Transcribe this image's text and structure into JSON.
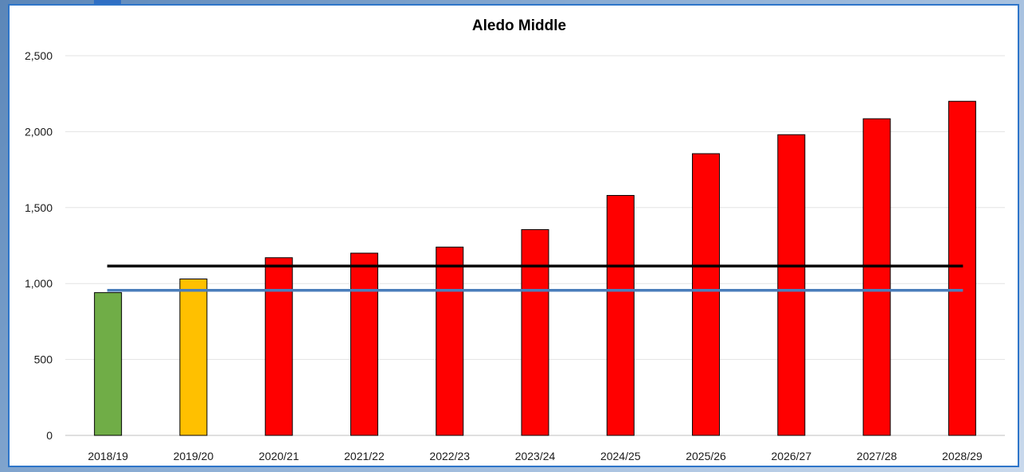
{
  "chart_data": {
    "type": "bar",
    "title": "Aledo Middle",
    "categories": [
      "2018/19",
      "2019/20",
      "2020/21",
      "2021/22",
      "2022/23",
      "2023/24",
      "2024/25",
      "2025/26",
      "2026/27",
      "2027/28",
      "2028/29"
    ],
    "values": [
      940,
      1030,
      1170,
      1200,
      1240,
      1355,
      1580,
      1855,
      1980,
      2085,
      2200
    ],
    "bar_colors": [
      "#70ad47",
      "#ffc000",
      "#ff0000",
      "#ff0000",
      "#ff0000",
      "#ff0000",
      "#ff0000",
      "#ff0000",
      "#ff0000",
      "#ff0000",
      "#ff0000"
    ],
    "ylim": [
      0,
      2500
    ],
    "yticks": [
      0,
      500,
      1000,
      1500,
      2000,
      2500
    ],
    "ytick_labels": [
      "0",
      "500",
      "1,000",
      "1,500",
      "2,000",
      "2,500"
    ],
    "reference_lines": [
      {
        "value": 1115,
        "color": "#000000"
      },
      {
        "value": 955,
        "color": "#4a7ebb"
      }
    ],
    "grid": true,
    "xlabel": "",
    "ylabel": ""
  }
}
